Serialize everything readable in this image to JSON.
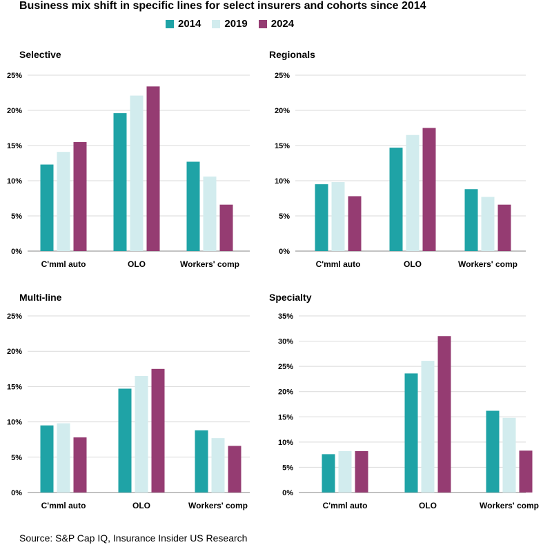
{
  "title": "Business mix shift in specific lines for select insurers and cohorts since 2014",
  "legend": [
    {
      "label": "2014",
      "color": "#1fa3a6"
    },
    {
      "label": "2019",
      "color": "#d2ecee"
    },
    {
      "label": "2024",
      "color": "#953c72"
    }
  ],
  "source": "Source: S&P Cap IQ, Insurance Insider US Research",
  "chart_data": [
    {
      "type": "bar",
      "title": "Selective",
      "categories": [
        "C'mml auto",
        "OLO",
        "Workers' comp"
      ],
      "series": [
        {
          "name": "2014",
          "values": [
            12.3,
            19.6,
            12.7
          ]
        },
        {
          "name": "2019",
          "values": [
            14.1,
            22.1,
            10.6
          ]
        },
        {
          "name": "2024",
          "values": [
            15.5,
            23.4,
            6.6
          ]
        }
      ],
      "ylim": [
        0,
        25
      ],
      "yticks": [
        "0%",
        "5%",
        "10%",
        "15%",
        "20%",
        "25%"
      ],
      "tick_values": [
        0,
        5,
        10,
        15,
        20,
        25
      ]
    },
    {
      "type": "bar",
      "title": "Regionals",
      "categories": [
        "C'mml auto",
        "OLO",
        "Workers' comp"
      ],
      "series": [
        {
          "name": "2014",
          "values": [
            9.5,
            14.7,
            8.8
          ]
        },
        {
          "name": "2019",
          "values": [
            9.8,
            16.5,
            7.7
          ]
        },
        {
          "name": "2024",
          "values": [
            7.8,
            17.5,
            6.6
          ]
        }
      ],
      "ylim": [
        0,
        25
      ],
      "yticks": [
        "0%",
        "5%",
        "10%",
        "15%",
        "20%",
        "25%"
      ],
      "tick_values": [
        0,
        5,
        10,
        15,
        20,
        25
      ]
    },
    {
      "type": "bar",
      "title": "Multi-line",
      "categories": [
        "C'mml auto",
        "OLO",
        "Workers' comp"
      ],
      "series": [
        {
          "name": "2014",
          "values": [
            9.5,
            14.7,
            8.8
          ]
        },
        {
          "name": "2019",
          "values": [
            9.8,
            16.5,
            7.7
          ]
        },
        {
          "name": "2024",
          "values": [
            7.8,
            17.5,
            6.6
          ]
        }
      ],
      "ylim": [
        0,
        25
      ],
      "yticks": [
        "0%",
        "5%",
        "10%",
        "15%",
        "20%",
        "25%"
      ],
      "tick_values": [
        0,
        5,
        10,
        15,
        20,
        25
      ]
    },
    {
      "type": "bar",
      "title": "Specialty",
      "categories": [
        "C'mml auto",
        "OLO",
        "Workers' comp"
      ],
      "series": [
        {
          "name": "2014",
          "values": [
            7.6,
            23.6,
            16.2
          ]
        },
        {
          "name": "2019",
          "values": [
            8.2,
            26.1,
            14.8
          ]
        },
        {
          "name": "2024",
          "values": [
            8.2,
            31.0,
            8.3
          ]
        }
      ],
      "ylim": [
        0,
        35
      ],
      "yticks": [
        "0%",
        "5%",
        "10%",
        "15%",
        "20%",
        "25%",
        "30%",
        "35%"
      ],
      "tick_values": [
        0,
        5,
        10,
        15,
        20,
        25,
        30,
        35
      ]
    }
  ]
}
